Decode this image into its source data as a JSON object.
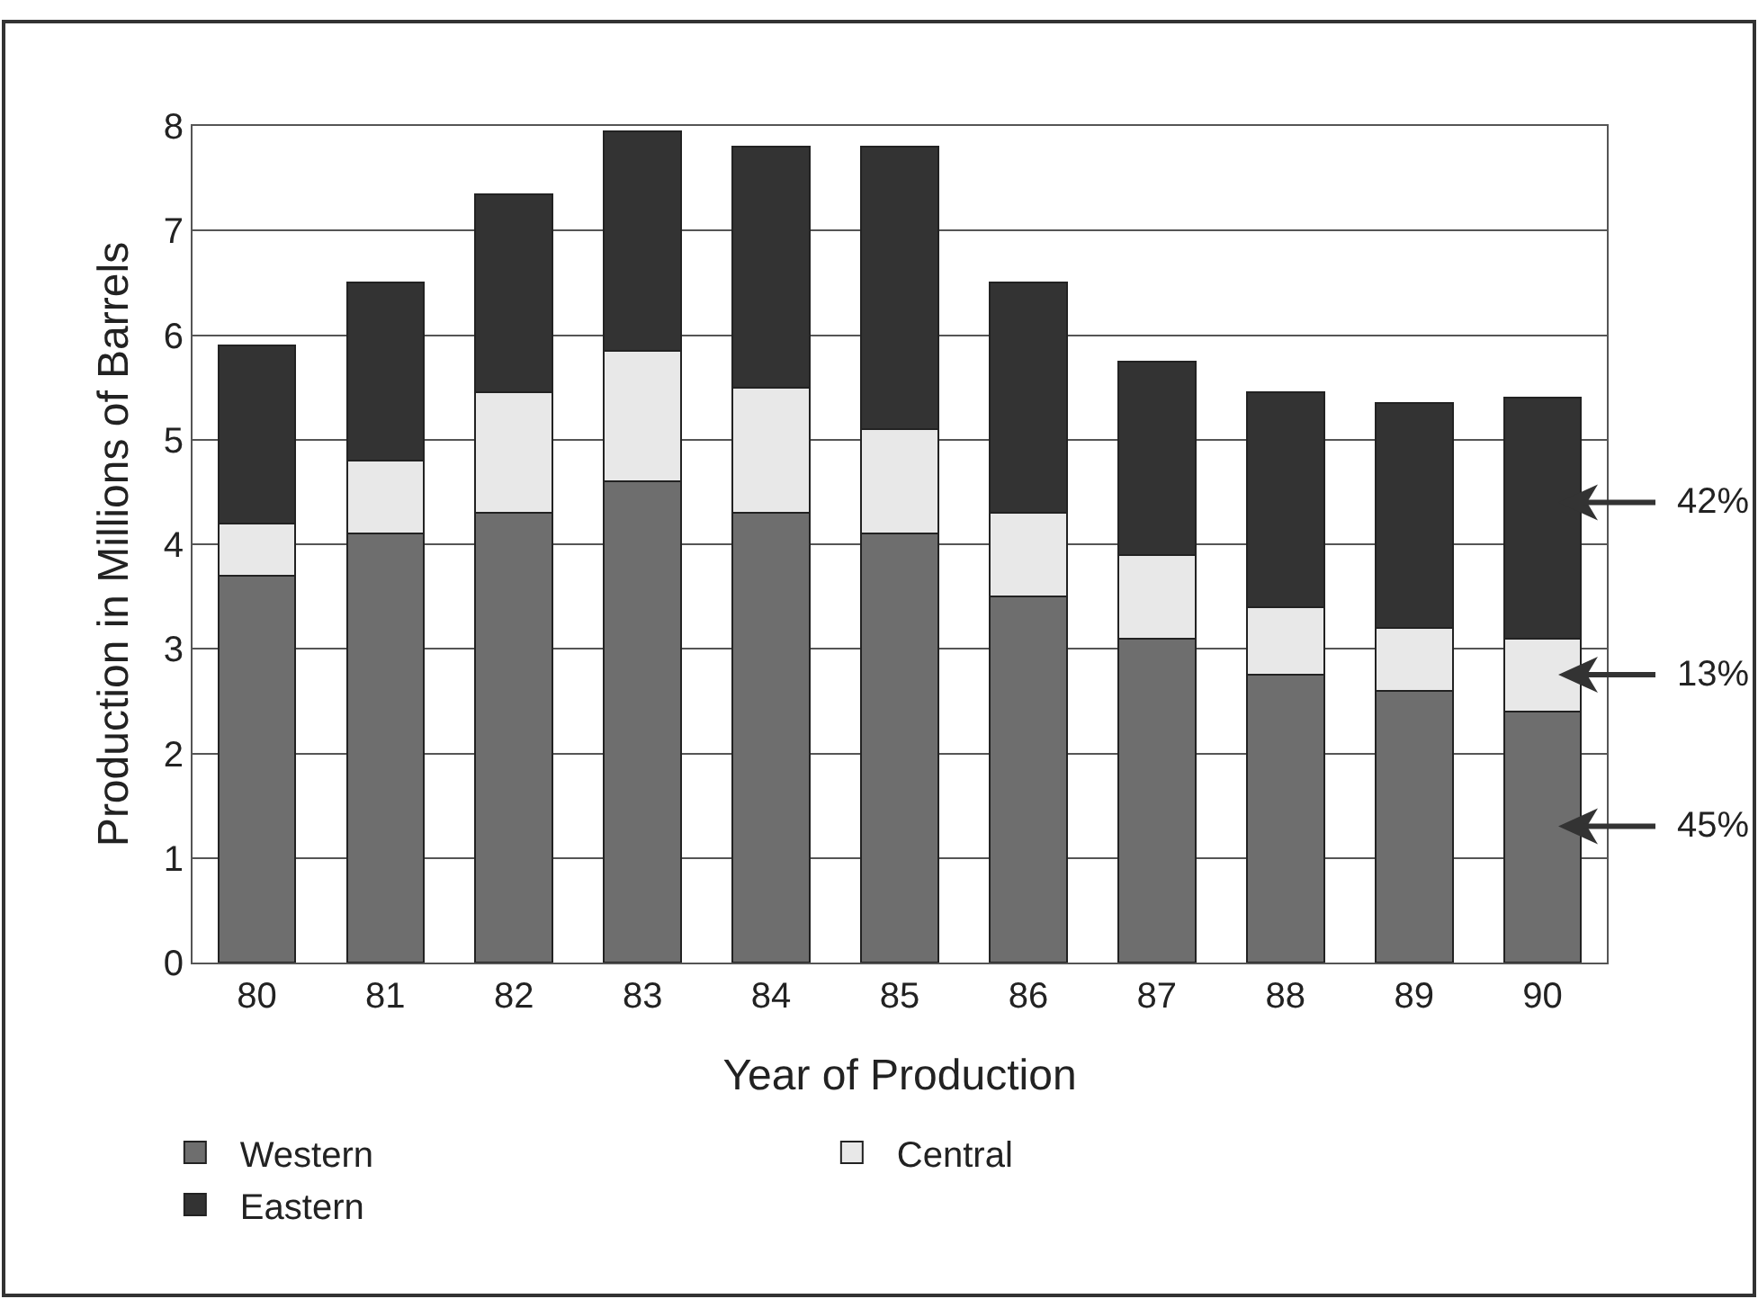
{
  "chart_data": {
    "type": "bar",
    "stacked": true,
    "categories": [
      "80",
      "81",
      "82",
      "83",
      "84",
      "85",
      "86",
      "87",
      "88",
      "89",
      "90"
    ],
    "series": [
      {
        "name": "Western",
        "color": "#6e6e6e",
        "values": [
          3.7,
          4.1,
          4.3,
          4.6,
          4.3,
          4.1,
          3.5,
          3.1,
          2.75,
          2.6,
          2.4
        ]
      },
      {
        "name": "Central",
        "color": "#e8e8e8",
        "values": [
          0.5,
          0.7,
          1.15,
          1.25,
          1.2,
          1.0,
          0.8,
          0.8,
          0.65,
          0.6,
          0.7
        ]
      },
      {
        "name": "Eastern",
        "color": "#333333",
        "values": [
          1.7,
          1.7,
          1.9,
          2.1,
          2.3,
          2.7,
          2.2,
          1.85,
          2.05,
          2.15,
          2.3
        ]
      }
    ],
    "xlabel": "Year of Production",
    "ylabel": "Production in Millions of Barrels",
    "ylim": [
      0,
      8
    ],
    "yticks": [
      0,
      1,
      2,
      3,
      4,
      5,
      6,
      7,
      8
    ],
    "grid": "y",
    "legend": "bottom",
    "annotations": [
      "42%",
      "13%",
      "45%"
    ]
  }
}
